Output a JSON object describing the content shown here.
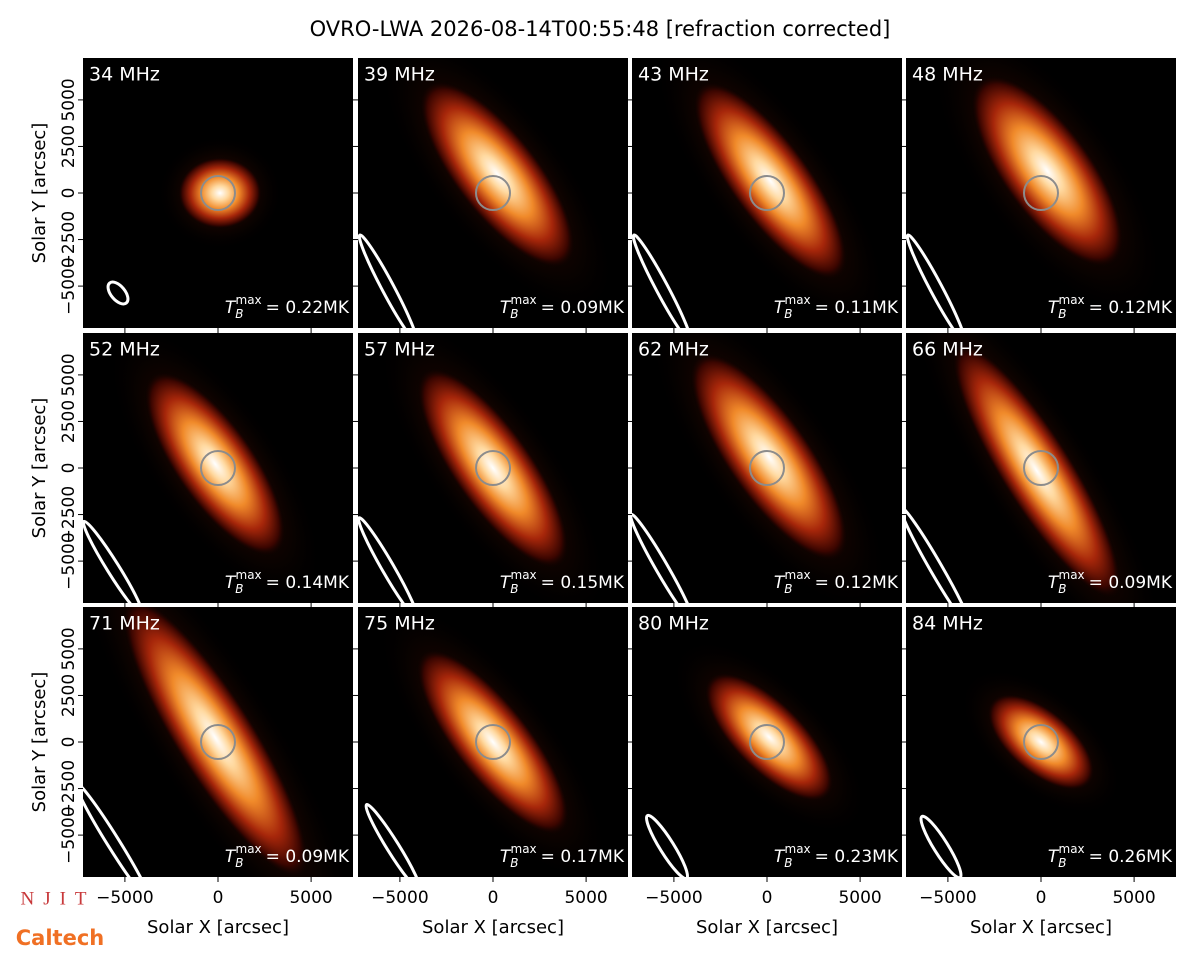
{
  "title": "OVRO-LWA 2026-08-14T00:55:48 [refraction corrected]",
  "xlabel": "Solar X [arcsec]",
  "ylabel": "Solar Y [arcsec]",
  "xlim": [
    -7250,
    7250
  ],
  "ylim": [
    -7250,
    7250
  ],
  "xticks": [
    {
      "value": -5000,
      "label": "−5000"
    },
    0,
    5000
  ],
  "yticks": [
    {
      "value": -5000,
      "label": "−5000"
    },
    {
      "value": -2500,
      "label": "−2500"
    },
    0,
    2500,
    5000
  ],
  "tb_symbol": "T",
  "tb_sub": "B",
  "tb_sup": "max",
  "logos": [
    "NJIT",
    "Caltech"
  ],
  "chart_data": [
    {
      "type": "image",
      "title": "34 MHz",
      "annotation": "= 0.22MK"
    },
    {
      "type": "image",
      "title": "39 MHz",
      "annotation": "= 0.09MK"
    },
    {
      "type": "image",
      "title": "43 MHz",
      "annotation": "= 0.11MK"
    },
    {
      "type": "image",
      "title": "48 MHz",
      "annotation": "= 0.12MK"
    },
    {
      "type": "image",
      "title": "52 MHz",
      "annotation": "= 0.14MK"
    },
    {
      "type": "image",
      "title": "57 MHz",
      "annotation": "= 0.15MK"
    },
    {
      "type": "image",
      "title": "62 MHz",
      "annotation": "= 0.12MK"
    },
    {
      "type": "image",
      "title": "66 MHz",
      "annotation": "= 0.09MK"
    },
    {
      "type": "image",
      "title": "71 MHz",
      "annotation": "= 0.09MK"
    },
    {
      "type": "image",
      "title": "75 MHz",
      "annotation": "= 0.17MK"
    },
    {
      "type": "image",
      "title": "80 MHz",
      "annotation": "= 0.23MK"
    },
    {
      "type": "image",
      "title": "84 MHz",
      "annotation": "= 0.26MK"
    }
  ]
}
